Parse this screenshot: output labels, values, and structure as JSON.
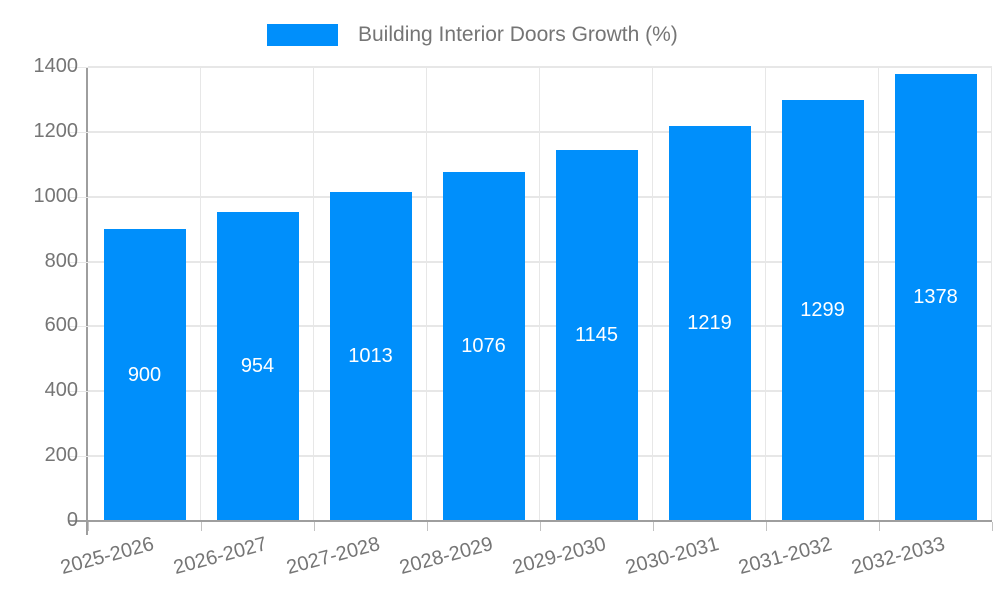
{
  "chart_data": {
    "type": "bar",
    "title": "Building Interior Doors Growth (%)",
    "categories": [
      "2025-2026",
      "2026-2027",
      "2027-2028",
      "2028-2029",
      "2029-2030",
      "2030-2031",
      "2031-2032",
      "2032-2033"
    ],
    "values": [
      900,
      954,
      1013,
      1076,
      1145,
      1219,
      1299,
      1378
    ],
    "xlabel": "",
    "ylabel": "",
    "ylim": [
      0,
      1400
    ],
    "ytick_step": 200,
    "ytick_labels": [
      "0",
      "200",
      "400",
      "600",
      "800",
      "1000",
      "1200",
      "1400"
    ],
    "grid": true,
    "bar_label_position": "center",
    "legend_position": "top",
    "colors": {
      "bar": "#008FFB",
      "value_label": "#FFFFFF",
      "axis_label": "#757575",
      "gridline": "#E7E7E7",
      "axis_line": "#9E9E9E",
      "tick": "#C2C2C2"
    }
  }
}
